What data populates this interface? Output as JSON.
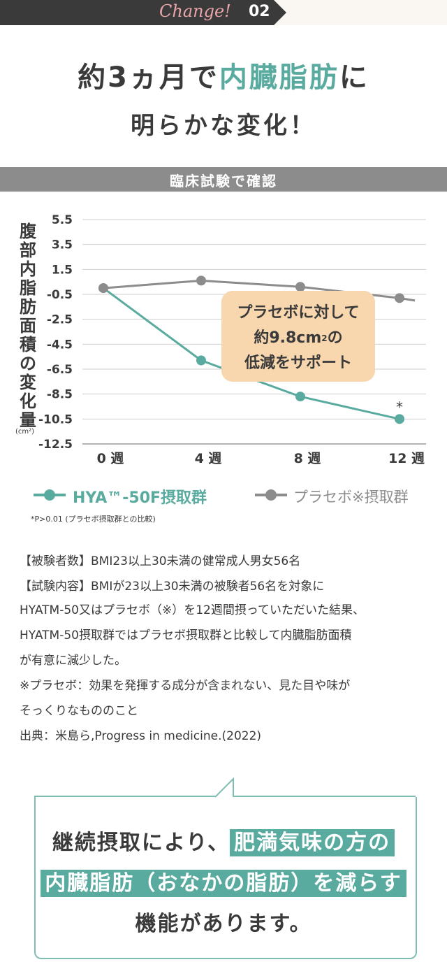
{
  "banner": {
    "change": "Change!",
    "number": "02"
  },
  "headline": {
    "line1_a": "約3ヵ月で",
    "line1_b": "内臓脂肪",
    "line1_c": "に",
    "line2": "明らかな変化！"
  },
  "clinical_bar": "臨床試験で確認",
  "y_axis_label_chars": [
    "腹",
    "部",
    "内",
    "脂",
    "肪",
    "面",
    "積",
    "の",
    "変",
    "化",
    "量"
  ],
  "y_axis_unit": "(cm²)",
  "callout": {
    "line1": "プラセボに対して",
    "line2_a": "約9.8cm",
    "line2_sup": "2",
    "line2_b": "の",
    "line3": "低減をサポート"
  },
  "significance_mark": "*",
  "legend": {
    "series1": "HYA™-50F摂取群",
    "series2": "プラセボ※摂取群"
  },
  "note_p": "*P>0.01 (プラセボ摂取群との比較)",
  "paragraphs": [
    "【被験者数】BMI23以上30未満の健常成人男女56名",
    "【試験内容】BMIが23以上30未満の被験者56名を対象に",
    "HYATM-50又はプラセボ（※）を12週間摂っていただいた結果、",
    "HYATM-50摂取群ではプラセボ摂取群と比較して内臓脂肪面積",
    "が有意に減少した。",
    "※プラセボ：効果を発揮する成分が含まれない、見た目や味が",
    "そっくりなもののこと",
    "出典：米島ら,Progress in medicine.(2022)"
  ],
  "bottom_box": {
    "line1_a": "継続摂取により、",
    "line1_b": "肥満気味の方の",
    "line2_a": "内臓脂肪（おなかの脂肪）を減らす",
    "line3": "機能があります。"
  },
  "colors": {
    "teal": "#5aab9f",
    "gray": "#8c8c8c",
    "callout": "#f8d7ae",
    "accent_pink": "#e9a5a8"
  },
  "chart_data": {
    "type": "line",
    "categories": [
      "0 週",
      "4 週",
      "8 週",
      "12 週"
    ],
    "x": [
      0,
      4,
      8,
      12
    ],
    "yticks": [
      "5.5",
      "3.5",
      "1.5",
      "-0.5",
      "-2.5",
      "-4.5",
      "-6.5",
      "-8.5",
      "-10.5",
      "-12.5"
    ],
    "ylim": [
      -12.5,
      5.5
    ],
    "ylabel": "腹部内脂肪面積の変化量 (cm²)",
    "grid": true,
    "legend_position": "bottom",
    "series": [
      {
        "name": "HYA™-50F摂取群",
        "color": "#5aab9f",
        "values": [
          0.0,
          -5.8,
          -8.7,
          -10.5
        ]
      },
      {
        "name": "プラセボ※摂取群",
        "color": "#8c8c8c",
        "values": [
          0.0,
          0.6,
          0.1,
          -0.8
        ],
        "trailing_value": -1.0
      }
    ]
  }
}
